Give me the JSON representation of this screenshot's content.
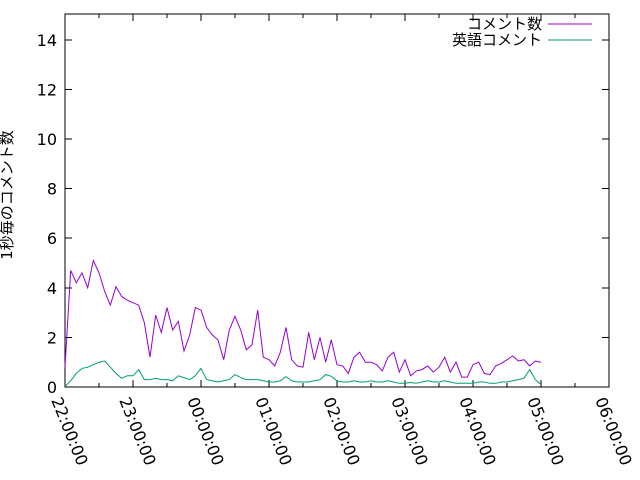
{
  "chart_data": {
    "type": "line",
    "title": "",
    "xlabel": "",
    "ylabel": "1秒毎のコメント数",
    "ylim": [
      0,
      15
    ],
    "yticks": [
      0,
      2,
      4,
      6,
      8,
      10,
      12,
      14
    ],
    "xticks": [
      "22:00:00",
      "23:00:00",
      "00:00:00",
      "01:00:00",
      "02:00:00",
      "03:00:00",
      "04:00:00",
      "05:00:00",
      "06:00:00"
    ],
    "x_minor_tick_interval_hours": 0.5,
    "grid": false,
    "legend_position": "top-right",
    "background_color": "#ffffff",
    "axis_color": "#000000",
    "x_start": "22:00:00",
    "x_end_of_data": "05:00:00",
    "sample_interval_minutes": 5,
    "series": [
      {
        "name": "コメント数",
        "color": "#9400d3",
        "values": [
          0.8,
          4.7,
          4.2,
          4.6,
          4.0,
          5.1,
          4.6,
          3.85,
          3.3,
          4.05,
          3.65,
          3.5,
          3.4,
          3.3,
          2.6,
          1.2,
          2.9,
          2.2,
          3.2,
          2.3,
          2.65,
          1.45,
          2.1,
          3.2,
          3.1,
          2.4,
          2.1,
          1.9,
          1.1,
          2.3,
          2.85,
          2.3,
          1.5,
          1.7,
          3.1,
          1.2,
          1.1,
          0.85,
          1.4,
          2.4,
          1.1,
          0.85,
          0.8,
          2.2,
          1.1,
          2.0,
          1.0,
          1.9,
          0.9,
          0.85,
          0.55,
          1.2,
          1.4,
          1.0,
          1.0,
          0.9,
          0.65,
          1.2,
          1.4,
          0.6,
          1.1,
          0.45,
          0.65,
          0.7,
          0.85,
          0.6,
          0.8,
          1.2,
          0.6,
          1.0,
          0.4,
          0.4,
          0.9,
          1.0,
          0.55,
          0.5,
          0.85,
          0.95,
          1.1,
          1.25,
          1.05,
          1.1,
          0.85,
          1.05,
          1.0
        ]
      },
      {
        "name": "英語コメント",
        "color": "#009e73",
        "values": [
          0.02,
          0.25,
          0.55,
          0.75,
          0.8,
          0.9,
          1.0,
          1.05,
          0.8,
          0.55,
          0.35,
          0.45,
          0.45,
          0.7,
          0.3,
          0.3,
          0.35,
          0.3,
          0.3,
          0.25,
          0.45,
          0.38,
          0.3,
          0.45,
          0.75,
          0.3,
          0.25,
          0.2,
          0.25,
          0.3,
          0.5,
          0.38,
          0.3,
          0.3,
          0.3,
          0.25,
          0.2,
          0.2,
          0.25,
          0.42,
          0.25,
          0.2,
          0.2,
          0.2,
          0.25,
          0.3,
          0.5,
          0.43,
          0.25,
          0.2,
          0.2,
          0.25,
          0.2,
          0.2,
          0.25,
          0.2,
          0.2,
          0.25,
          0.2,
          0.15,
          0.15,
          0.18,
          0.15,
          0.2,
          0.25,
          0.2,
          0.2,
          0.25,
          0.2,
          0.15,
          0.15,
          0.15,
          0.15,
          0.2,
          0.2,
          0.15,
          0.15,
          0.2,
          0.2,
          0.25,
          0.3,
          0.35,
          0.7,
          0.3,
          0.1
        ]
      }
    ]
  }
}
